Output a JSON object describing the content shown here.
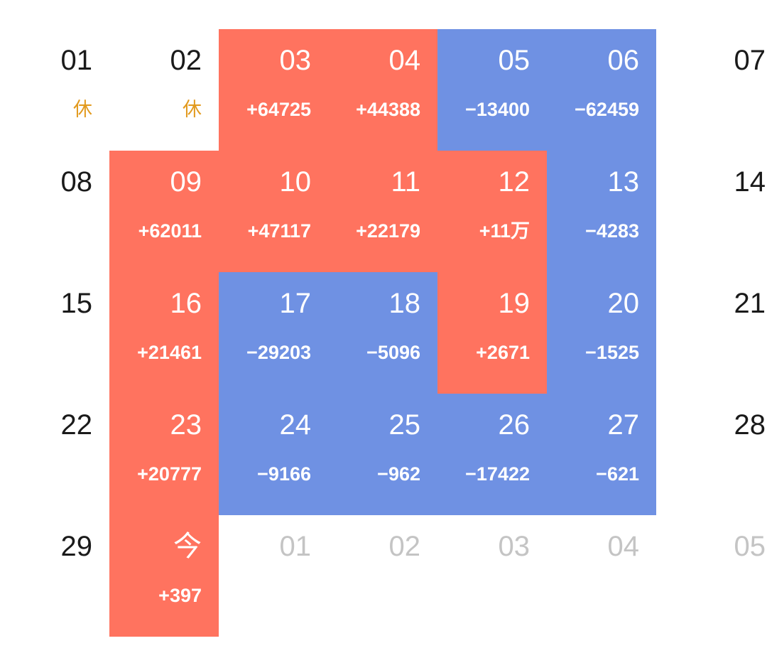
{
  "colors": {
    "gain": "#FF735F",
    "loss": "#6F91E3",
    "rest": "#E29A1E",
    "day_text": "#1a1a1a",
    "next_month_text": "#c4c4c4"
  },
  "weeks": [
    [
      {
        "day": "01",
        "sub": "休",
        "type": "rest"
      },
      {
        "day": "02",
        "sub": "休",
        "type": "rest"
      },
      {
        "day": "03",
        "sub": "+64725",
        "type": "gain"
      },
      {
        "day": "04",
        "sub": "+44388",
        "type": "gain"
      },
      {
        "day": "05",
        "sub": "−13400",
        "type": "loss"
      },
      {
        "day": "06",
        "sub": "−62459",
        "type": "loss"
      },
      {
        "day": "07",
        "sub": "",
        "type": "plain"
      }
    ],
    [
      {
        "day": "08",
        "sub": "",
        "type": "plain"
      },
      {
        "day": "09",
        "sub": "+62011",
        "type": "gain"
      },
      {
        "day": "10",
        "sub": "+47117",
        "type": "gain"
      },
      {
        "day": "11",
        "sub": "+22179",
        "type": "gain"
      },
      {
        "day": "12",
        "sub": "+11万",
        "type": "gain"
      },
      {
        "day": "13",
        "sub": "−4283",
        "type": "loss"
      },
      {
        "day": "14",
        "sub": "",
        "type": "plain"
      }
    ],
    [
      {
        "day": "15",
        "sub": "",
        "type": "plain"
      },
      {
        "day": "16",
        "sub": "+21461",
        "type": "gain"
      },
      {
        "day": "17",
        "sub": "−29203",
        "type": "loss"
      },
      {
        "day": "18",
        "sub": "−5096",
        "type": "loss"
      },
      {
        "day": "19",
        "sub": "+2671",
        "type": "gain"
      },
      {
        "day": "20",
        "sub": "−1525",
        "type": "loss"
      },
      {
        "day": "21",
        "sub": "",
        "type": "plain"
      }
    ],
    [
      {
        "day": "22",
        "sub": "",
        "type": "plain"
      },
      {
        "day": "23",
        "sub": "+20777",
        "type": "gain"
      },
      {
        "day": "24",
        "sub": "−9166",
        "type": "loss"
      },
      {
        "day": "25",
        "sub": "−962",
        "type": "loss"
      },
      {
        "day": "26",
        "sub": "−17422",
        "type": "loss"
      },
      {
        "day": "27",
        "sub": "−621",
        "type": "loss"
      },
      {
        "day": "28",
        "sub": "",
        "type": "plain"
      }
    ],
    [
      {
        "day": "29",
        "sub": "",
        "type": "plain"
      },
      {
        "day": "今",
        "sub": "+397",
        "type": "gain"
      },
      {
        "day": "01",
        "sub": "",
        "type": "next"
      },
      {
        "day": "02",
        "sub": "",
        "type": "next"
      },
      {
        "day": "03",
        "sub": "",
        "type": "next"
      },
      {
        "day": "04",
        "sub": "",
        "type": "next"
      },
      {
        "day": "05",
        "sub": "",
        "type": "next"
      }
    ]
  ]
}
